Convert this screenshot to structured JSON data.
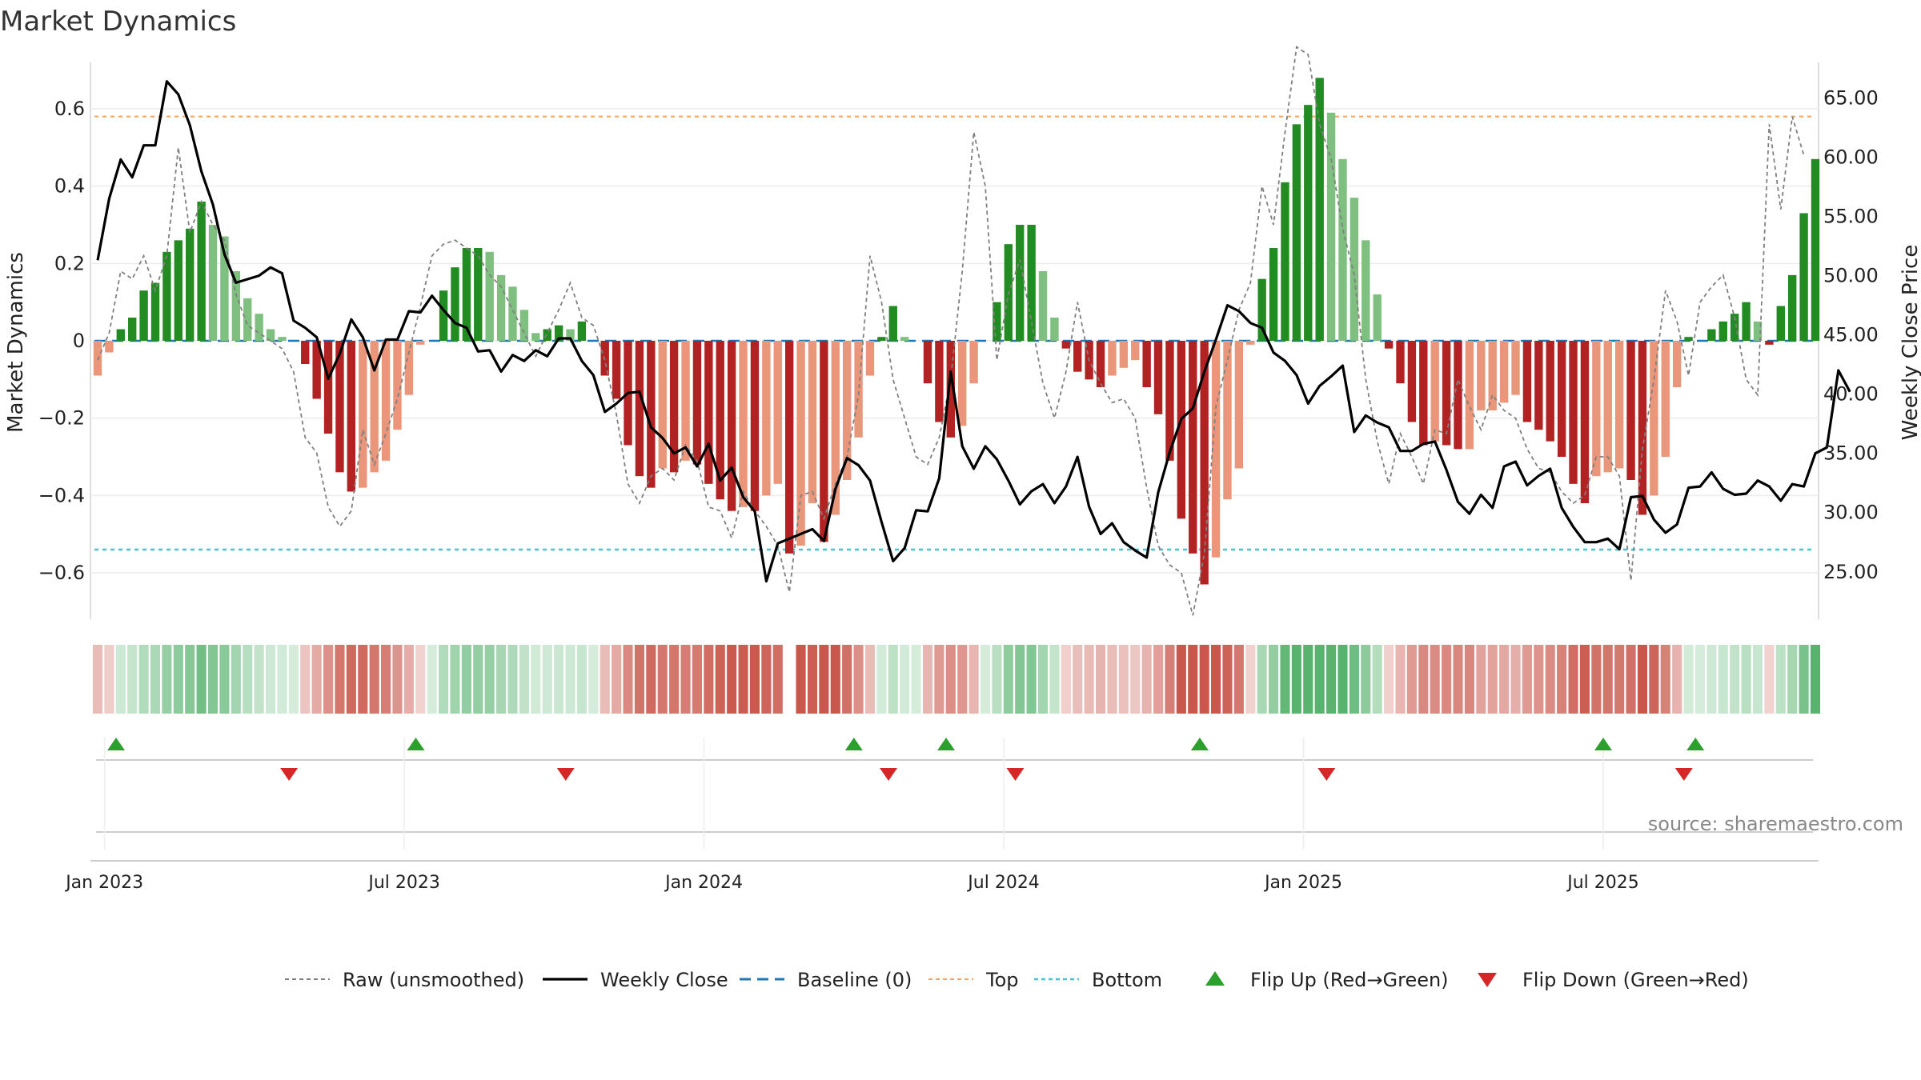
{
  "title": "Market Dynamics",
  "source": "source: sharemaestro.com",
  "chart_data": {
    "type": "bar+line",
    "title": "Market Dynamics",
    "ylabel_left": "Market Dynamics",
    "ylabel_right": "Weekly Close Price",
    "left_axis": {
      "min": -0.72,
      "max": 0.72,
      "ticks": [
        0.6,
        0.4,
        0.2,
        0,
        -0.2,
        -0.4,
        -0.6
      ],
      "tick_labels": [
        "0.6",
        "0.4",
        "0.2",
        "0",
        "−0.2",
        "−0.4",
        "−0.6"
      ]
    },
    "right_axis": {
      "min": 21.0,
      "max": 68.0,
      "ticks": [
        65,
        60,
        55,
        50,
        45,
        40,
        35,
        30,
        25
      ],
      "tick_labels": [
        "65.00",
        "60.00",
        "55.00",
        "50.00",
        "45.00",
        "40.00",
        "35.00",
        "30.00",
        "25.00"
      ]
    },
    "top_level": 0.58,
    "bottom_level": -0.54,
    "baseline": 0,
    "x_ticks": [
      {
        "week": 1,
        "label": "Jan 2023"
      },
      {
        "week": 27,
        "label": "Jul 2023"
      },
      {
        "week": 53,
        "label": "Jan 2024"
      },
      {
        "week": 79,
        "label": "Jul 2024"
      },
      {
        "week": 105,
        "label": "Jan 2025"
      },
      {
        "week": 131,
        "label": "Jul 2025"
      }
    ],
    "bar_values": [
      -0.09,
      -0.03,
      0.03,
      0.06,
      0.13,
      0.15,
      0.23,
      0.26,
      0.29,
      0.36,
      0.3,
      0.27,
      0.18,
      0.11,
      0.07,
      0.03,
      0.01,
      0.0,
      -0.06,
      -0.15,
      -0.24,
      -0.34,
      -0.39,
      -0.38,
      -0.34,
      -0.31,
      -0.23,
      -0.14,
      -0.01,
      0.0,
      0.13,
      0.19,
      0.24,
      0.24,
      0.23,
      0.17,
      0.14,
      0.08,
      0.02,
      0.03,
      0.04,
      0.03,
      0.05,
      0.0,
      -0.09,
      -0.15,
      -0.27,
      -0.35,
      -0.38,
      -0.33,
      -0.34,
      -0.31,
      -0.32,
      -0.37,
      -0.41,
      -0.44,
      -0.43,
      -0.44,
      -0.4,
      -0.37,
      -0.55,
      -0.53,
      -0.42,
      -0.52,
      -0.45,
      -0.36,
      -0.25,
      -0.09,
      0.01,
      0.09,
      0.01,
      0.0,
      -0.11,
      -0.21,
      -0.25,
      -0.22,
      -0.11,
      0.0,
      0.1,
      0.25,
      0.3,
      0.3,
      0.18,
      0.06,
      -0.02,
      -0.08,
      -0.1,
      -0.12,
      -0.09,
      -0.07,
      -0.05,
      -0.12,
      -0.19,
      -0.31,
      -0.46,
      -0.55,
      -0.63,
      -0.56,
      -0.41,
      -0.33,
      -0.01,
      0.16,
      0.24,
      0.41,
      0.56,
      0.61,
      0.68,
      0.59,
      0.47,
      0.37,
      0.26,
      0.12,
      -0.02,
      -0.11,
      -0.21,
      -0.27,
      -0.26,
      -0.27,
      -0.28,
      -0.28,
      -0.18,
      -0.18,
      -0.16,
      -0.14,
      -0.21,
      -0.23,
      -0.26,
      -0.3,
      -0.37,
      -0.42,
      -0.35,
      -0.34,
      -0.33,
      -0.36,
      -0.45,
      -0.4,
      -0.3,
      -0.12,
      0.01,
      0.0,
      0.03,
      0.05,
      0.07,
      0.1,
      0.05,
      -0.01,
      0.09,
      0.17,
      0.33,
      0.47
    ],
    "raw_values": [
      -0.05,
      0.02,
      0.18,
      0.16,
      0.22,
      0.13,
      0.22,
      0.5,
      0.28,
      0.36,
      0.3,
      0.26,
      0.12,
      0.04,
      0.02,
      0.0,
      -0.02,
      -0.08,
      -0.25,
      -0.29,
      -0.43,
      -0.48,
      -0.44,
      -0.23,
      -0.32,
      -0.24,
      -0.15,
      -0.03,
      0.09,
      0.22,
      0.25,
      0.26,
      0.24,
      0.22,
      0.17,
      0.14,
      0.08,
      0.02,
      -0.04,
      0.02,
      0.08,
      0.15,
      0.06,
      0.04,
      -0.05,
      -0.19,
      -0.37,
      -0.42,
      -0.35,
      -0.33,
      -0.36,
      -0.27,
      -0.31,
      -0.43,
      -0.44,
      -0.51,
      -0.39,
      -0.44,
      -0.48,
      -0.53,
      -0.65,
      -0.4,
      -0.39,
      -0.46,
      -0.37,
      -0.3,
      -0.14,
      0.22,
      0.1,
      -0.1,
      -0.2,
      -0.3,
      -0.32,
      -0.25,
      -0.1,
      0.18,
      0.54,
      0.4,
      -0.05,
      0.12,
      0.21,
      0.05,
      -0.11,
      -0.2,
      -0.08,
      0.1,
      -0.05,
      -0.11,
      -0.16,
      -0.15,
      -0.2,
      -0.38,
      -0.53,
      -0.58,
      -0.6,
      -0.71,
      -0.55,
      -0.17,
      -0.05,
      0.08,
      0.15,
      0.4,
      0.3,
      0.54,
      0.76,
      0.74,
      0.56,
      0.47,
      0.29,
      0.17,
      -0.1,
      -0.26,
      -0.37,
      -0.24,
      -0.3,
      -0.37,
      -0.23,
      -0.24,
      -0.1,
      -0.17,
      -0.23,
      -0.14,
      -0.18,
      -0.2,
      -0.28,
      -0.33,
      -0.34,
      -0.39,
      -0.42,
      -0.4,
      -0.3,
      -0.3,
      -0.35,
      -0.62,
      -0.28,
      -0.1,
      0.13,
      0.05,
      -0.09,
      0.1,
      0.14,
      0.17,
      0.06,
      -0.1,
      -0.14,
      0.56,
      0.34,
      0.58,
      0.48
    ],
    "close_values": [
      51.3,
      56.5,
      59.8,
      58.3,
      61.0,
      61.0,
      66.4,
      65.3,
      62.7,
      58.8,
      56.0,
      51.8,
      49.4,
      49.7,
      50.0,
      50.7,
      50.2,
      46.2,
      45.6,
      44.8,
      41.3,
      43.4,
      46.3,
      44.8,
      42.0,
      44.6,
      44.6,
      47.0,
      46.9,
      48.3,
      47.1,
      46.0,
      45.6,
      43.6,
      43.7,
      41.9,
      43.3,
      42.8,
      43.7,
      43.2,
      44.7,
      44.7,
      42.8,
      41.6,
      38.5,
      39.2,
      40.1,
      40.2,
      37.2,
      36.3,
      35.0,
      35.5,
      33.9,
      35.8,
      32.7,
      33.8,
      31.3,
      30.1,
      24.2,
      27.4,
      27.8,
      28.2,
      28.6,
      27.6,
      32.0,
      34.6,
      34.0,
      32.7,
      29.2,
      25.9,
      27.0,
      30.2,
      30.1,
      32.9,
      41.9,
      35.6,
      33.7,
      35.6,
      34.5,
      32.7,
      30.7,
      31.8,
      32.4,
      30.8,
      32.2,
      34.7,
      30.5,
      28.2,
      29.1,
      27.5,
      26.8,
      26.2,
      31.7,
      35.1,
      37.9,
      38.8,
      41.9,
      44.6,
      47.5,
      47.0,
      46.0,
      45.6,
      43.5,
      42.8,
      41.6,
      39.2,
      40.7,
      41.5,
      42.4,
      36.8,
      38.2,
      37.6,
      37.2,
      35.2,
      35.2,
      35.8,
      36.0,
      33.6,
      30.9,
      29.9,
      31.5,
      30.4,
      33.9,
      34.3,
      32.3,
      33.1,
      33.7,
      30.4,
      28.8,
      27.5,
      27.5,
      27.8,
      26.9,
      31.3,
      31.4,
      29.4,
      28.3,
      29.0,
      32.1,
      32.2,
      33.4,
      32.0,
      31.5,
      31.6,
      32.7,
      32.2,
      31.0,
      32.4,
      32.2,
      35.0,
      35.5,
      42.0,
      40.2
    ],
    "flips_up": [
      2,
      28,
      66,
      74,
      96,
      131,
      139
    ],
    "flips_down": [
      17,
      41,
      69,
      80,
      107,
      138
    ],
    "gap_weeks": [
      60
    ],
    "series_names": [
      "Raw (unsmoothed)",
      "Weekly Close",
      "Baseline (0)",
      "Top",
      "Bottom",
      "Flip Up (Red→Green)",
      "Flip Down (Green→Red)"
    ]
  },
  "colors": {
    "green_strong": "#228b22",
    "green_light": "#7fbf7f",
    "red_strong": "#b22222",
    "red_light": "#e9967a",
    "top_line": "#f4a460",
    "bottom_line": "#40c4d8",
    "baseline": "#1f77b4",
    "raw_line": "#808080",
    "close_line": "#000000",
    "flip_up": "#2ca02c",
    "flip_down": "#d62728"
  },
  "legend": [
    {
      "key": "raw",
      "label": "Raw (unsmoothed)"
    },
    {
      "key": "close",
      "label": "Weekly Close"
    },
    {
      "key": "baseline",
      "label": "Baseline (0)"
    },
    {
      "key": "top",
      "label": "Top"
    },
    {
      "key": "bottom",
      "label": "Bottom"
    },
    {
      "key": "flipup",
      "label": "Flip Up (Red→Green)"
    },
    {
      "key": "flipdown",
      "label": "Flip Down (Green→Red)"
    }
  ]
}
